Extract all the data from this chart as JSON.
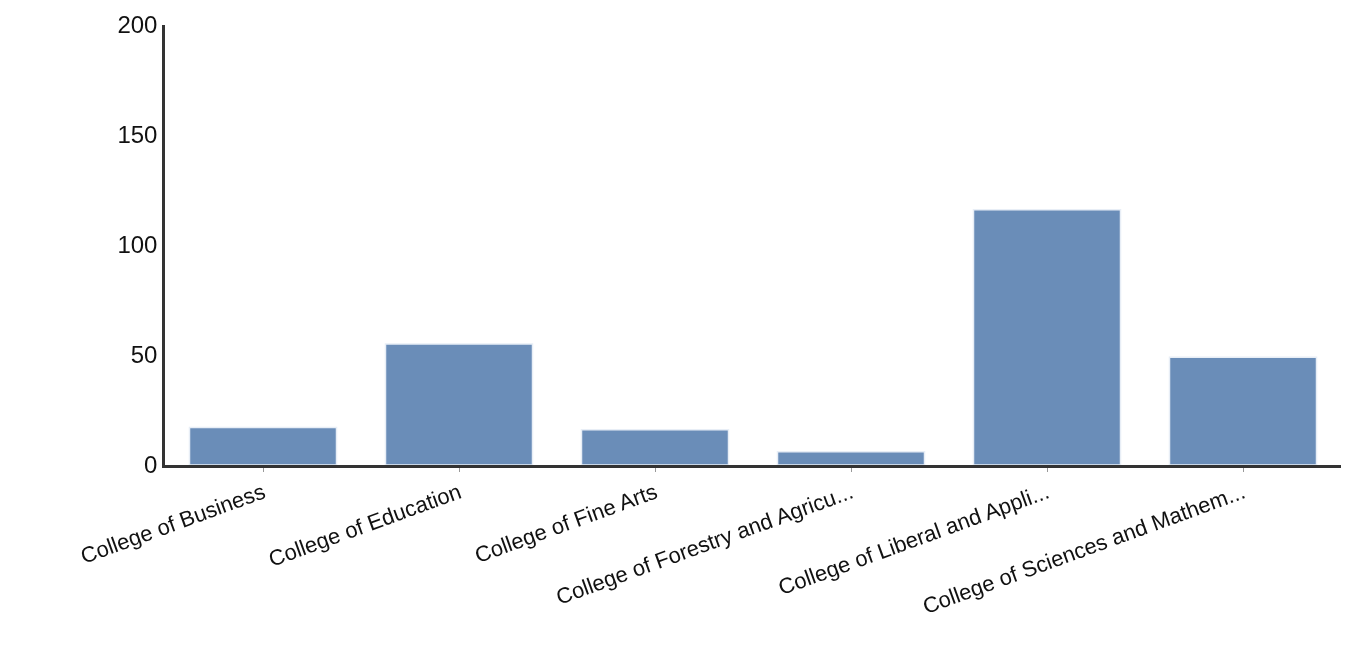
{
  "chart_data": {
    "type": "bar",
    "categories": [
      "College of Business",
      "College of Education",
      "College of Fine Arts",
      "College of Forestry and Agricu...",
      "College of Liberal and Appli...",
      "College of Sciences and Mathem..."
    ],
    "values": [
      17,
      55,
      16,
      6,
      116,
      49
    ],
    "color": "#6a8db8",
    "ylim": [
      0,
      200
    ],
    "yticks": [
      0,
      50,
      100,
      150,
      200
    ],
    "grid": false
  }
}
